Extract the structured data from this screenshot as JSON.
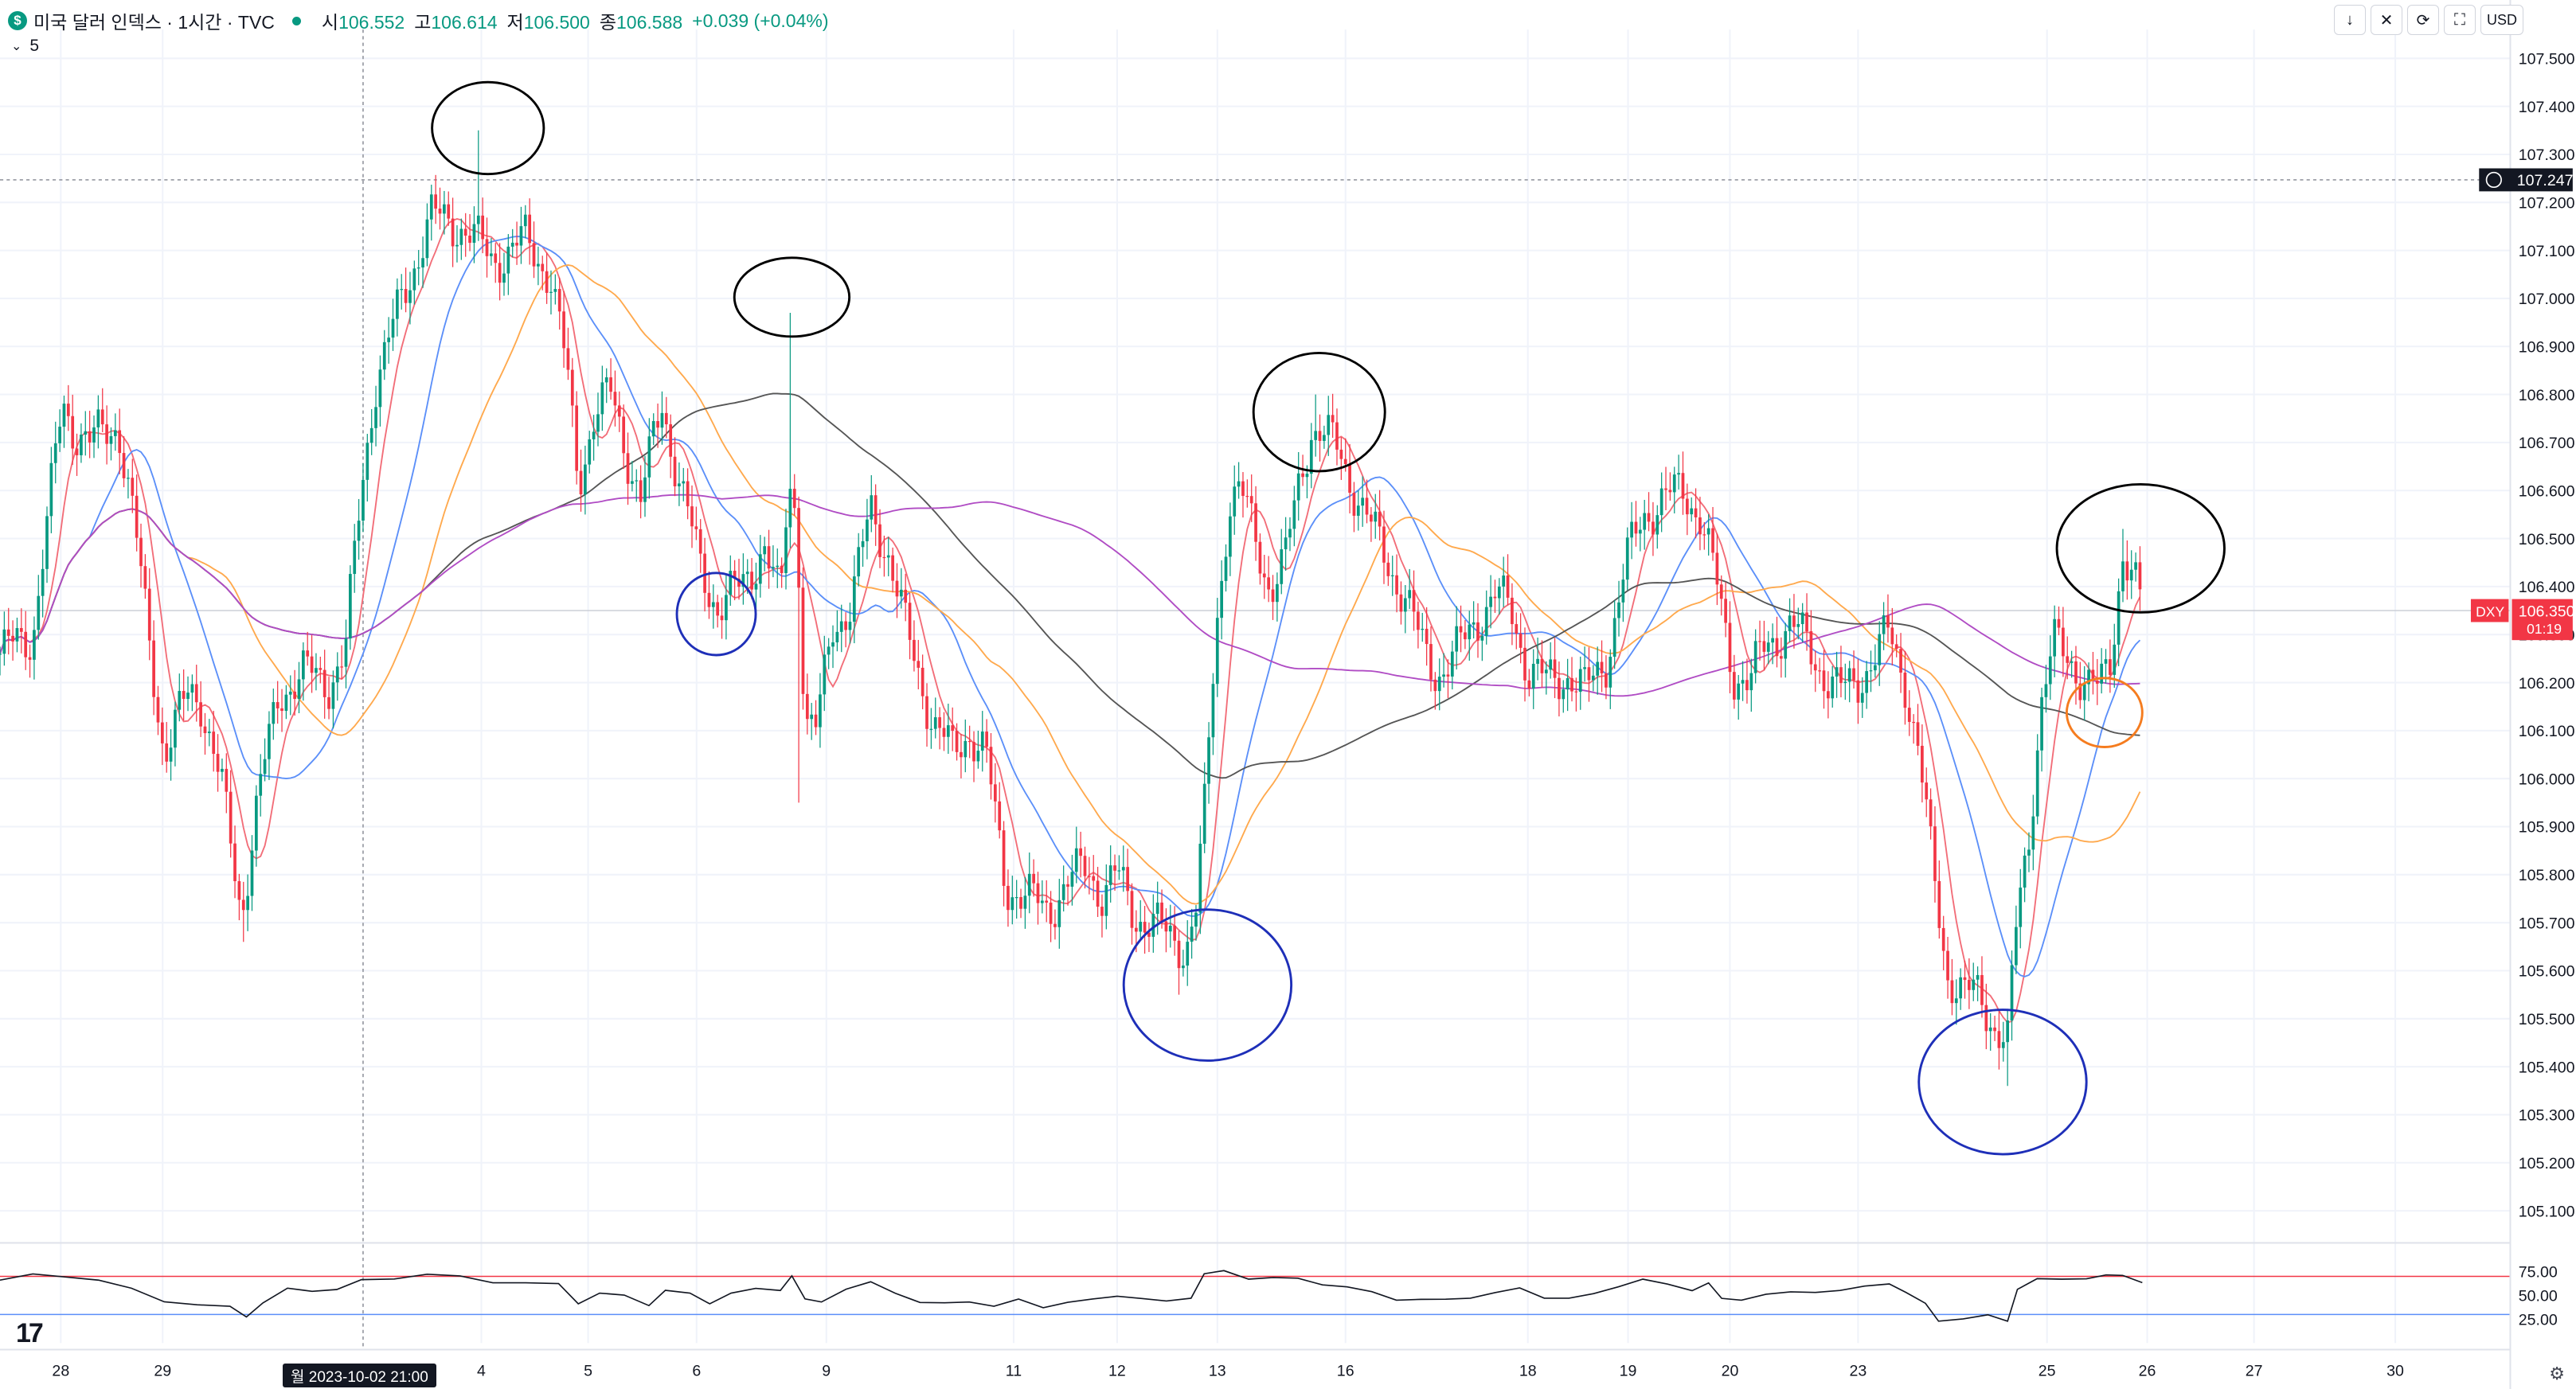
{
  "header": {
    "symbol_badge": "$",
    "title": "미국 달러 인덱스 · 1시간 · TVC",
    "ohlc": [
      {
        "label": "시",
        "value": "106.552"
      },
      {
        "label": "고",
        "value": "106.614"
      },
      {
        "label": "저",
        "value": "106.500"
      },
      {
        "label": "종",
        "value": "106.588"
      }
    ],
    "change": "+0.039 (+0.04%)",
    "interval_label": "5"
  },
  "toolbar": {
    "buttons": [
      "↓",
      "✕",
      "⟳",
      "⛶"
    ],
    "currency": "USD"
  },
  "colors": {
    "up": "#089981",
    "down": "#f23645",
    "ma_fast": "#f26d78",
    "ma_blue": "#5b8ff9",
    "ma_orange": "#ffa94d",
    "ma_dark": "#555555",
    "ma_purple": "#b04cc4",
    "rsi_line": "#131722",
    "circle_black": "#000000",
    "circle_blue": "#1e2fb8",
    "circle_orange": "#f57c1f"
  },
  "chart_data": {
    "type": "candlestick",
    "symbol": "DXY",
    "y_ticks": [
      "107.500",
      "107.400",
      "107.300",
      "107.200",
      "107.100",
      "107.000",
      "106.900",
      "106.800",
      "106.700",
      "106.600",
      "106.500",
      "106.400",
      "106.300",
      "106.200",
      "106.100",
      "106.000",
      "105.900",
      "105.800",
      "105.700",
      "105.600",
      "105.500",
      "105.400",
      "105.300",
      "105.200",
      "105.100"
    ],
    "y_range": [
      105.04,
      107.56
    ],
    "x_labels": [
      "28",
      "29",
      "4",
      "5",
      "6",
      "9",
      "11",
      "12",
      "13",
      "16",
      "18",
      "19",
      "20",
      "23",
      "25",
      "26",
      "27",
      "30"
    ],
    "crosshair_price": "107.247",
    "current_price": "106.350",
    "current_countdown": "01:19",
    "current_symbol": "DXY",
    "crosshair_date": "월 2023-10-02   21:00",
    "path": [
      [
        0,
        106.26
      ],
      [
        20,
        106.3
      ],
      [
        38,
        106.78
      ],
      [
        45,
        106.73
      ],
      [
        55,
        106.7
      ],
      [
        72,
        106.74
      ],
      [
        82,
        106.52
      ],
      [
        100,
        106.05
      ],
      [
        115,
        106.18
      ],
      [
        122,
        106.17
      ],
      [
        135,
        105.98
      ],
      [
        147,
        105.72
      ],
      [
        157,
        105.96
      ],
      [
        170,
        106.18
      ],
      [
        185,
        106.22
      ],
      [
        200,
        106.2
      ],
      [
        210,
        106.26
      ],
      [
        220,
        106.6
      ],
      [
        228,
        106.82
      ],
      [
        245,
        107.0
      ],
      [
        262,
        107.17
      ],
      [
        282,
        107.15
      ],
      [
        300,
        107.08
      ],
      [
        320,
        107.12
      ],
      [
        335,
        107.05
      ],
      [
        345,
        106.85
      ],
      [
        352,
        106.62
      ],
      [
        362,
        106.76
      ],
      [
        372,
        106.8
      ],
      [
        380,
        106.7
      ],
      [
        390,
        106.58
      ],
      [
        403,
        106.78
      ],
      [
        415,
        106.6
      ],
      [
        427,
        106.43
      ],
      [
        437,
        106.36
      ],
      [
        452,
        106.4
      ],
      [
        465,
        106.49
      ],
      [
        475,
        106.36
      ],
      [
        480,
        106.62
      ],
      [
        485,
        106.55
      ],
      [
        490,
        106.12
      ],
      [
        497,
        106.1
      ],
      [
        507,
        106.32
      ],
      [
        518,
        106.36
      ],
      [
        530,
        106.56
      ],
      [
        540,
        106.48
      ],
      [
        552,
        106.3
      ],
      [
        568,
        106.12
      ],
      [
        580,
        106.05
      ],
      [
        590,
        106.1
      ],
      [
        600,
        106.05
      ],
      [
        612,
        105.78
      ],
      [
        625,
        105.75
      ],
      [
        638,
        105.73
      ],
      [
        650,
        105.78
      ],
      [
        662,
        105.82
      ],
      [
        670,
        105.76
      ],
      [
        680,
        105.8
      ],
      [
        690,
        105.72
      ],
      [
        700,
        105.7
      ],
      [
        712,
        105.67
      ],
      [
        722,
        105.65
      ],
      [
        728,
        105.73
      ],
      [
        733,
        105.92
      ],
      [
        740,
        106.3
      ],
      [
        748,
        106.58
      ],
      [
        755,
        106.6
      ],
      [
        764,
        106.5
      ],
      [
        773,
        106.4
      ],
      [
        782,
        106.45
      ],
      [
        790,
        106.6
      ],
      [
        798,
        106.73
      ],
      [
        805,
        106.72
      ],
      [
        815,
        106.68
      ],
      [
        825,
        106.6
      ],
      [
        835,
        106.52
      ],
      [
        845,
        106.45
      ],
      [
        855,
        106.38
      ],
      [
        865,
        106.28
      ],
      [
        875,
        106.22
      ],
      [
        885,
        106.25
      ],
      [
        898,
        106.33
      ],
      [
        910,
        106.38
      ],
      [
        920,
        106.35
      ],
      [
        930,
        106.23
      ],
      [
        942,
        106.2
      ],
      [
        955,
        106.22
      ],
      [
        965,
        106.18
      ],
      [
        978,
        106.25
      ],
      [
        990,
        106.45
      ],
      [
        1000,
        106.55
      ],
      [
        1012,
        106.58
      ],
      [
        1025,
        106.6
      ],
      [
        1035,
        106.55
      ],
      [
        1045,
        106.4
      ],
      [
        1055,
        106.22
      ],
      [
        1065,
        106.2
      ],
      [
        1075,
        106.28
      ],
      [
        1090,
        106.32
      ],
      [
        1100,
        106.28
      ],
      [
        1110,
        106.22
      ],
      [
        1120,
        106.18
      ],
      [
        1130,
        106.2
      ],
      [
        1140,
        106.25
      ],
      [
        1150,
        106.3
      ],
      [
        1160,
        106.2
      ],
      [
        1168,
        106.05
      ],
      [
        1175,
        105.85
      ],
      [
        1185,
        105.6
      ],
      [
        1195,
        105.55
      ],
      [
        1205,
        105.55
      ],
      [
        1215,
        105.48
      ],
      [
        1222,
        105.45
      ],
      [
        1228,
        105.72
      ],
      [
        1235,
        105.88
      ],
      [
        1242,
        106.15
      ],
      [
        1250,
        106.28
      ],
      [
        1260,
        106.25
      ],
      [
        1270,
        106.2
      ],
      [
        1278,
        106.18
      ],
      [
        1285,
        106.25
      ],
      [
        1292,
        106.48
      ],
      [
        1300,
        106.4
      ],
      [
        1304,
        106.35
      ]
    ],
    "wicks": [
      [
        292,
        107.35
      ],
      [
        480,
        106.97
      ],
      [
        802,
        106.8
      ],
      [
        1222,
        105.36
      ],
      [
        1292,
        106.52
      ],
      [
        147,
        105.66
      ],
      [
        717,
        105.55
      ],
      [
        487,
        105.95
      ]
    ],
    "rsi": {
      "levels": [
        "75.00",
        "50.00",
        "25.00"
      ],
      "upper": 70,
      "lower": 30,
      "path": [
        [
          0,
          66
        ],
        [
          20,
          70
        ],
        [
          40,
          72
        ],
        [
          60,
          66
        ],
        [
          80,
          55
        ],
        [
          100,
          46
        ],
        [
          120,
          40
        ],
        [
          140,
          36
        ],
        [
          150,
          30
        ],
        [
          160,
          42
        ],
        [
          175,
          55
        ],
        [
          190,
          57
        ],
        [
          205,
          56
        ],
        [
          220,
          64
        ],
        [
          240,
          70
        ],
        [
          260,
          72
        ],
        [
          280,
          68
        ],
        [
          300,
          66
        ],
        [
          320,
          63
        ],
        [
          340,
          60
        ],
        [
          352,
          44
        ],
        [
          365,
          52
        ],
        [
          380,
          48
        ],
        [
          395,
          42
        ],
        [
          405,
          55
        ],
        [
          420,
          50
        ],
        [
          432,
          44
        ],
        [
          445,
          52
        ],
        [
          460,
          55
        ],
        [
          475,
          58
        ],
        [
          482,
          70
        ],
        [
          490,
          44
        ],
        [
          500,
          46
        ],
        [
          515,
          56
        ],
        [
          530,
          62
        ],
        [
          545,
          55
        ],
        [
          560,
          42
        ],
        [
          575,
          40
        ],
        [
          590,
          46
        ],
        [
          605,
          38
        ],
        [
          620,
          44
        ],
        [
          635,
          40
        ],
        [
          650,
          42
        ],
        [
          665,
          44
        ],
        [
          680,
          52
        ],
        [
          695,
          46
        ],
        [
          710,
          42
        ],
        [
          725,
          50
        ],
        [
          733,
          72
        ],
        [
          745,
          74
        ],
        [
          760,
          70
        ],
        [
          775,
          68
        ],
        [
          790,
          66
        ],
        [
          805,
          64
        ],
        [
          820,
          58
        ],
        [
          835,
          52
        ],
        [
          850,
          48
        ],
        [
          865,
          45
        ],
        [
          880,
          44
        ],
        [
          895,
          50
        ],
        [
          910,
          52
        ],
        [
          925,
          56
        ],
        [
          940,
          50
        ],
        [
          955,
          46
        ],
        [
          970,
          50
        ],
        [
          985,
          62
        ],
        [
          1000,
          66
        ],
        [
          1015,
          60
        ],
        [
          1030,
          58
        ],
        [
          1040,
          62
        ],
        [
          1048,
          45
        ],
        [
          1060,
          48
        ],
        [
          1075,
          50
        ],
        [
          1090,
          52
        ],
        [
          1105,
          56
        ],
        [
          1120,
          54
        ],
        [
          1135,
          58
        ],
        [
          1150,
          65
        ],
        [
          1160,
          52
        ],
        [
          1172,
          40
        ],
        [
          1180,
          26
        ],
        [
          1195,
          24
        ],
        [
          1210,
          28
        ],
        [
          1222,
          26
        ],
        [
          1228,
          55
        ],
        [
          1240,
          66
        ],
        [
          1255,
          70
        ],
        [
          1270,
          66
        ],
        [
          1282,
          70
        ],
        [
          1292,
          74
        ],
        [
          1304,
          62
        ]
      ]
    },
    "annotations": [
      {
        "color": "black",
        "cx": 297,
        "cy": 78,
        "rx": 34,
        "ry": 28
      },
      {
        "color": "black",
        "cx": 482,
        "cy": 181,
        "rx": 35,
        "ry": 24
      },
      {
        "color": "black",
        "cx": 803,
        "cy": 251,
        "rx": 40,
        "ry": 36
      },
      {
        "color": "black",
        "cx": 1303,
        "cy": 334,
        "rx": 51,
        "ry": 39
      },
      {
        "color": "blue",
        "cx": 436,
        "cy": 374,
        "rx": 24,
        "ry": 25
      },
      {
        "color": "blue",
        "cx": 735,
        "cy": 600,
        "rx": 51,
        "ry": 46
      },
      {
        "color": "blue",
        "cx": 1219,
        "cy": 659,
        "rx": 51,
        "ry": 44
      },
      {
        "color": "orange",
        "cx": 1281,
        "cy": 434,
        "rx": 23,
        "ry": 21
      }
    ]
  },
  "footer": {
    "logo": "17"
  }
}
